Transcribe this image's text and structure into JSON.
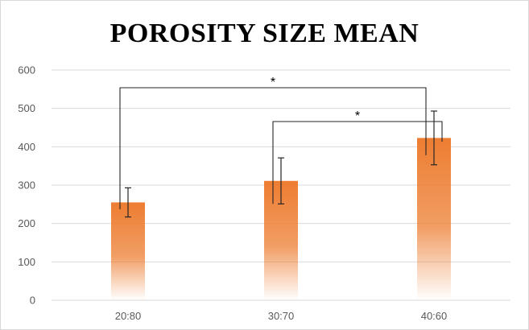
{
  "chart_data": {
    "type": "bar",
    "title": "POROSITY SIZE MEAN",
    "xlabel": "",
    "ylabel": "",
    "categories": [
      "20:80",
      "30:70",
      "40:60"
    ],
    "values": [
      255,
      311,
      423
    ],
    "error": [
      38,
      60,
      70
    ],
    "ylim": [
      0,
      600
    ],
    "yticks": [
      0,
      100,
      200,
      300,
      400,
      500,
      600
    ],
    "grid": true,
    "legend": "none",
    "bar_color": "#ed7d31",
    "grid_color": "#d9d9d9",
    "significance": [
      {
        "from": "20:80",
        "to": "40:60",
        "label": "*"
      },
      {
        "from": "30:70",
        "to": "40:60",
        "label": "*"
      }
    ]
  }
}
